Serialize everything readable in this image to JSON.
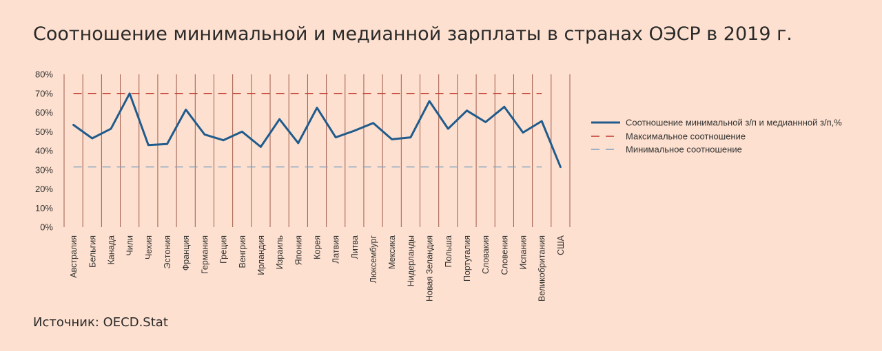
{
  "chart_data": {
    "type": "line",
    "title": "Соотношение минимальной и медианной зарплаты в странах ОЭСР в 2019 г.",
    "source": "Источник: OECD.Stat",
    "ylim": [
      0,
      80
    ],
    "yticks": [
      "0%",
      "10%",
      "20%",
      "30%",
      "40%",
      "50%",
      "60%",
      "70%",
      "80%"
    ],
    "categories": [
      "Австралия",
      "Бельгия",
      "Канада",
      "Чили",
      "Чехия",
      "Эстония",
      "Франция",
      "Германия",
      "Греция",
      "Венгрия",
      "Ирландия",
      "Израиль",
      "Япония",
      "Корея",
      "Латвия",
      "Литва",
      "Люксембург",
      "Мексика",
      "Нидерланды",
      "Новая Зеландия",
      "Польша",
      "Португалия",
      "Словакия",
      "Словения",
      "Испания",
      "Великобритания",
      "США"
    ],
    "series": [
      {
        "name": "Соотношение минимальной з/п и медианнной з/п,%",
        "color": "#1f5b8c",
        "values": [
          53.5,
          46.5,
          51.5,
          70,
          43,
          43.5,
          61.5,
          48.5,
          45.5,
          50,
          42,
          56.5,
          44,
          62.5,
          47,
          50.5,
          54.5,
          46,
          47,
          66,
          51.5,
          61,
          55,
          63,
          49.5,
          55.5,
          31.5
        ]
      },
      {
        "name": "Максимальное соотношение",
        "color": "#c0392b",
        "style": "dashed",
        "value": 70
      },
      {
        "name": "Минимальное соотношение",
        "color": "#7f9fbf",
        "style": "dashed",
        "value": 31.5
      }
    ],
    "grid": "vertical",
    "legend": "right"
  }
}
